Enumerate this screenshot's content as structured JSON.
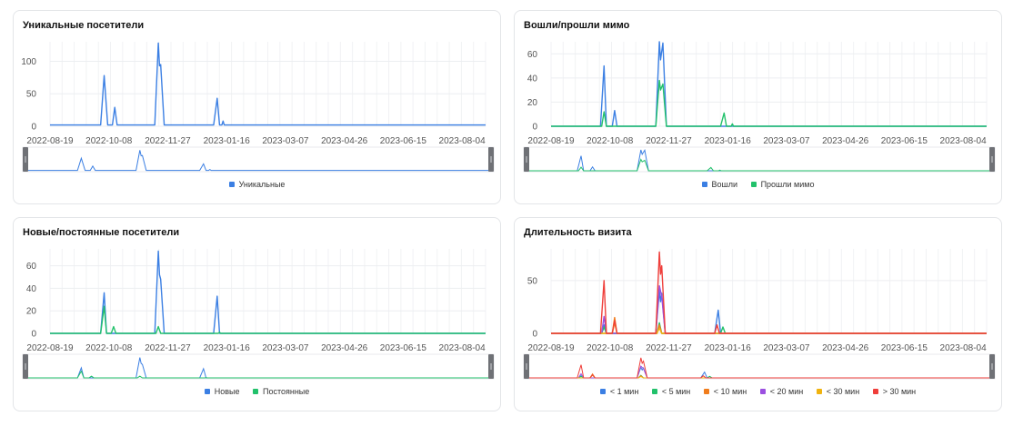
{
  "charts": [
    {
      "title": "Уникальные посетители",
      "y_ticks": [
        "0",
        "50",
        "100"
      ],
      "x_ticks": [
        "2022-08-19",
        "2022-10-08",
        "2022-11-27",
        "2023-01-16",
        "2023-03-07",
        "2023-04-26",
        "2023-06-15",
        "2023-08-04"
      ],
      "legend": [
        {
          "label": "Уникальные",
          "color": "#3b7fe3"
        }
      ]
    },
    {
      "title": "Вошли/прошли мимо",
      "y_ticks": [
        "0",
        "20",
        "40",
        "60"
      ],
      "x_ticks": [
        "2022-08-19",
        "2022-10-08",
        "2022-11-27",
        "2023-01-16",
        "2023-03-07",
        "2023-04-26",
        "2023-06-15",
        "2023-08-04"
      ],
      "legend": [
        {
          "label": "Вошли",
          "color": "#3b7fe3"
        },
        {
          "label": "Прошли мимо",
          "color": "#22c16b"
        }
      ]
    },
    {
      "title": "Новые/постоянные посетители",
      "y_ticks": [
        "0",
        "20",
        "40",
        "60"
      ],
      "x_ticks": [
        "2022-08-19",
        "2022-10-08",
        "2022-11-27",
        "2023-01-16",
        "2023-03-07",
        "2023-04-26",
        "2023-06-15",
        "2023-08-04"
      ],
      "legend": [
        {
          "label": "Новые",
          "color": "#3b7fe3"
        },
        {
          "label": "Постоянные",
          "color": "#22c16b"
        }
      ]
    },
    {
      "title": "Длительность визита",
      "y_ticks": [
        "0",
        "50"
      ],
      "x_ticks": [
        "2022-08-19",
        "2022-10-08",
        "2022-11-27",
        "2023-01-16",
        "2023-03-07",
        "2023-04-26",
        "2023-06-15",
        "2023-08-04"
      ],
      "legend": [
        {
          "label": "< 1 мин",
          "color": "#3b7fe3"
        },
        {
          "label": "< 5 мин",
          "color": "#22c16b"
        },
        {
          "label": "< 10 мин",
          "color": "#f07c1c"
        },
        {
          "label": "< 20 мин",
          "color": "#9b4fe0"
        },
        {
          "label": "< 30 мин",
          "color": "#f0b30f"
        },
        {
          "label": "> 30 мин",
          "color": "#ef3e3a"
        }
      ]
    }
  ],
  "chart_data": [
    {
      "type": "line",
      "title": "Уникальные посетители",
      "ylim": [
        0,
        130
      ],
      "xlim": [
        "2022-08-19",
        "2023-08-24"
      ],
      "series": [
        {
          "name": "Уникальные",
          "color": "#3b7fe3",
          "points": [
            [
              "2022-08-19",
              2
            ],
            [
              "2022-10-01",
              2
            ],
            [
              "2022-10-04",
              78
            ],
            [
              "2022-10-07",
              2
            ],
            [
              "2022-10-11",
              2
            ],
            [
              "2022-10-13",
              29
            ],
            [
              "2022-10-15",
              2
            ],
            [
              "2022-11-16",
              2
            ],
            [
              "2022-11-19",
              128
            ],
            [
              "2022-11-20",
              93
            ],
            [
              "2022-11-21",
              95
            ],
            [
              "2022-11-24",
              2
            ],
            [
              "2023-01-05",
              2
            ],
            [
              "2023-01-08",
              43
            ],
            [
              "2023-01-10",
              2
            ],
            [
              "2023-01-12",
              2
            ],
            [
              "2023-01-13",
              8
            ],
            [
              "2023-01-14",
              2
            ],
            [
              "2023-08-24",
              2
            ]
          ]
        }
      ]
    },
    {
      "type": "line",
      "title": "Вошли/прошли мимо",
      "ylim": [
        0,
        70
      ],
      "xlim": [
        "2022-08-19",
        "2023-08-24"
      ],
      "series": [
        {
          "name": "Вошли",
          "color": "#3b7fe3",
          "points": [
            [
              "2022-08-19",
              0
            ],
            [
              "2022-09-30",
              0
            ],
            [
              "2022-10-03",
              50
            ],
            [
              "2022-10-05",
              0
            ],
            [
              "2022-10-10",
              0
            ],
            [
              "2022-10-12",
              13
            ],
            [
              "2022-10-14",
              0
            ],
            [
              "2022-11-16",
              0
            ],
            [
              "2022-11-19",
              70
            ],
            [
              "2022-11-20",
              55
            ],
            [
              "2022-11-22",
              69
            ],
            [
              "2022-11-25",
              0
            ],
            [
              "2023-08-24",
              0
            ]
          ]
        },
        {
          "name": "Прошли мимо",
          "color": "#22c16b",
          "points": [
            [
              "2022-08-19",
              0
            ],
            [
              "2022-10-01",
              0
            ],
            [
              "2022-10-03",
              12
            ],
            [
              "2022-10-05",
              0
            ],
            [
              "2022-11-16",
              0
            ],
            [
              "2022-11-19",
              38
            ],
            [
              "2022-11-20",
              30
            ],
            [
              "2022-11-22",
              35
            ],
            [
              "2022-11-25",
              0
            ],
            [
              "2023-01-10",
              0
            ],
            [
              "2023-01-13",
              11
            ],
            [
              "2023-01-15",
              0
            ],
            [
              "2023-01-19",
              0
            ],
            [
              "2023-01-20",
              2
            ],
            [
              "2023-01-21",
              0
            ],
            [
              "2023-08-24",
              0
            ]
          ]
        }
      ]
    },
    {
      "type": "line",
      "title": "Новые/постоянные посетители",
      "ylim": [
        0,
        75
      ],
      "xlim": [
        "2022-08-19",
        "2023-08-24"
      ],
      "series": [
        {
          "name": "Новые",
          "color": "#3b7fe3",
          "points": [
            [
              "2022-08-19",
              0
            ],
            [
              "2022-10-01",
              0
            ],
            [
              "2022-10-04",
              36
            ],
            [
              "2022-10-06",
              0
            ],
            [
              "2022-11-16",
              0
            ],
            [
              "2022-11-19",
              73
            ],
            [
              "2022-11-20",
              52
            ],
            [
              "2022-11-21",
              48
            ],
            [
              "2022-11-24",
              0
            ],
            [
              "2023-01-05",
              0
            ],
            [
              "2023-01-08",
              33
            ],
            [
              "2023-01-10",
              0
            ],
            [
              "2023-08-24",
              0
            ]
          ]
        },
        {
          "name": "Постоянные",
          "color": "#22c16b",
          "points": [
            [
              "2022-08-19",
              0
            ],
            [
              "2022-10-01",
              0
            ],
            [
              "2022-10-04",
              24
            ],
            [
              "2022-10-06",
              0
            ],
            [
              "2022-10-10",
              0
            ],
            [
              "2022-10-12",
              6
            ],
            [
              "2022-10-14",
              0
            ],
            [
              "2022-11-17",
              0
            ],
            [
              "2022-11-19",
              6
            ],
            [
              "2022-11-21",
              0
            ],
            [
              "2023-01-09",
              0
            ],
            [
              "2023-01-10",
              1
            ],
            [
              "2023-01-11",
              0
            ],
            [
              "2023-08-24",
              0
            ]
          ]
        }
      ]
    },
    {
      "type": "area",
      "title": "Длительность визита",
      "ylim": [
        0,
        80
      ],
      "xlim": [
        "2022-08-19",
        "2023-08-24"
      ],
      "series": [
        {
          "name": "< 1 мин",
          "color": "#3b7fe3",
          "points": [
            [
              "2022-08-19",
              0
            ],
            [
              "2022-10-01",
              0
            ],
            [
              "2022-10-03",
              8
            ],
            [
              "2022-10-05",
              0
            ],
            [
              "2022-11-16",
              0
            ],
            [
              "2022-11-19",
              40
            ],
            [
              "2022-11-20",
              30
            ],
            [
              "2022-11-21",
              38
            ],
            [
              "2022-11-24",
              0
            ],
            [
              "2023-01-05",
              0
            ],
            [
              "2023-01-08",
              22
            ],
            [
              "2023-01-10",
              0
            ],
            [
              "2023-08-24",
              0
            ]
          ]
        },
        {
          "name": "< 5 мин",
          "color": "#22c16b",
          "points": [
            [
              "2022-08-19",
              0
            ],
            [
              "2022-10-01",
              0
            ],
            [
              "2022-10-03",
              6
            ],
            [
              "2022-10-05",
              0
            ],
            [
              "2022-11-17",
              0
            ],
            [
              "2022-11-19",
              10
            ],
            [
              "2022-11-21",
              0
            ],
            [
              "2023-01-10",
              0
            ],
            [
              "2023-01-12",
              6
            ],
            [
              "2023-01-14",
              0
            ],
            [
              "2023-08-24",
              0
            ]
          ]
        },
        {
          "name": "< 10 мин",
          "color": "#f07c1c",
          "points": [
            [
              "2022-08-19",
              0
            ],
            [
              "2022-10-10",
              0
            ],
            [
              "2022-10-12",
              15
            ],
            [
              "2022-10-14",
              0
            ],
            [
              "2022-11-17",
              0
            ],
            [
              "2022-11-19",
              8
            ],
            [
              "2022-11-21",
              0
            ],
            [
              "2023-08-24",
              0
            ]
          ]
        },
        {
          "name": "< 20 мин",
          "color": "#9b4fe0",
          "points": [
            [
              "2022-08-19",
              0
            ],
            [
              "2022-10-01",
              0
            ],
            [
              "2022-10-03",
              16
            ],
            [
              "2022-10-05",
              0
            ],
            [
              "2022-11-16",
              0
            ],
            [
              "2022-11-19",
              45
            ],
            [
              "2022-11-21",
              35
            ],
            [
              "2022-11-24",
              0
            ],
            [
              "2023-08-24",
              0
            ]
          ]
        },
        {
          "name": "< 30 мин",
          "color": "#f0b30f",
          "points": [
            [
              "2022-08-19",
              0
            ],
            [
              "2022-10-10",
              0
            ],
            [
              "2022-10-12",
              10
            ],
            [
              "2022-10-14",
              0
            ],
            [
              "2022-11-17",
              0
            ],
            [
              "2022-11-19",
              5
            ],
            [
              "2022-11-21",
              0
            ],
            [
              "2023-08-24",
              0
            ]
          ]
        },
        {
          "name": "> 30 мин",
          "color": "#ef3e3a",
          "points": [
            [
              "2022-08-19",
              0
            ],
            [
              "2022-09-30",
              0
            ],
            [
              "2022-10-03",
              50
            ],
            [
              "2022-10-05",
              0
            ],
            [
              "2022-10-10",
              0
            ],
            [
              "2022-10-12",
              12
            ],
            [
              "2022-10-14",
              0
            ],
            [
              "2022-11-16",
              0
            ],
            [
              "2022-11-19",
              77
            ],
            [
              "2022-11-20",
              56
            ],
            [
              "2022-11-21",
              64
            ],
            [
              "2022-11-24",
              0
            ],
            [
              "2023-01-05",
              0
            ],
            [
              "2023-01-07",
              8
            ],
            [
              "2023-01-09",
              0
            ],
            [
              "2023-08-24",
              0
            ]
          ]
        }
      ]
    }
  ]
}
